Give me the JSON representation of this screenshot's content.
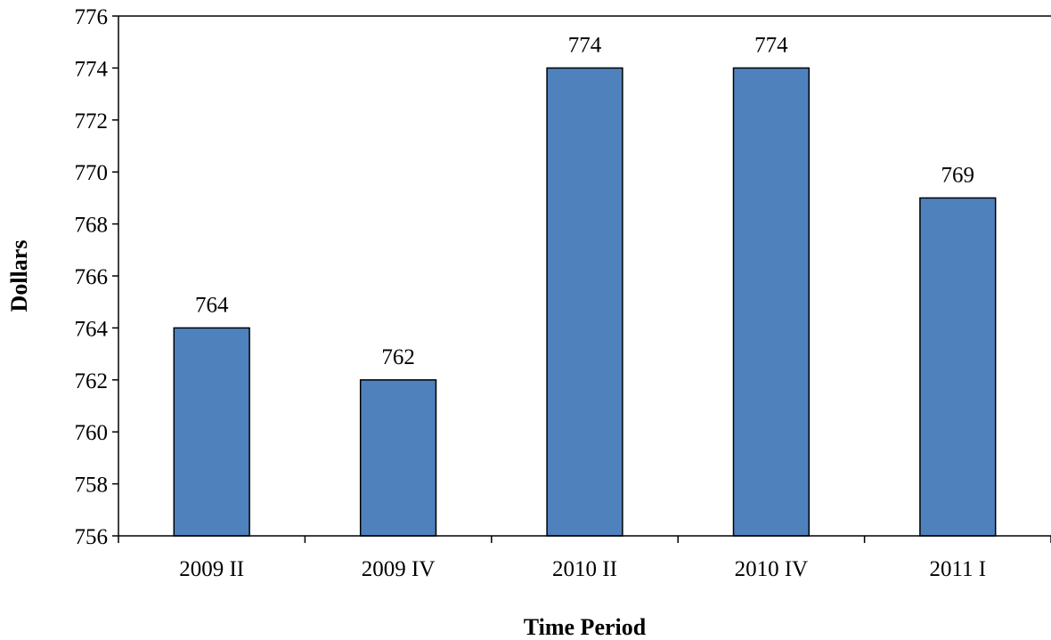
{
  "chart_data": {
    "type": "bar",
    "title": "",
    "xlabel": "Time Period",
    "ylabel": "Dollars",
    "categories": [
      "2009 II",
      "2009 IV",
      "2010 II",
      "2010 IV",
      "2011 I"
    ],
    "values": [
      764,
      762,
      774,
      774,
      769
    ],
    "data_labels": [
      "764",
      "762",
      "774",
      "774",
      "769"
    ],
    "ylim": [
      756,
      776
    ],
    "yticks": [
      756,
      758,
      760,
      762,
      764,
      766,
      768,
      770,
      772,
      774,
      776
    ],
    "grid": false,
    "legend": "none",
    "colors": {
      "bar_fill": "#4f81bd",
      "bar_stroke": "#000000",
      "axis": "#000000"
    }
  }
}
